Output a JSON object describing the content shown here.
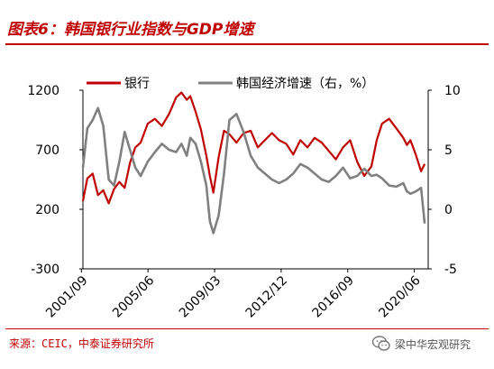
{
  "header": {
    "title": "图表6：韩国银行业指数与GDP增速"
  },
  "footer": {
    "source": "来源：CEIC，中泰证券研究所",
    "watermark": "梁中华宏观研究"
  },
  "colors": {
    "accent": "#c00000",
    "series_bank": "#c00000",
    "series_gdp": "#808080"
  },
  "chart_data": {
    "type": "line",
    "title": "",
    "legend_position": "top",
    "x_ticks": [
      "2001/09",
      "2005/06",
      "2009/03",
      "2012/12",
      "2016/09",
      "2020/06"
    ],
    "x_range": [
      "2001/09",
      "2021/03"
    ],
    "y_left": {
      "ticks": [
        "1200",
        "700",
        "200",
        "-300"
      ],
      "range": [
        -300,
        1200
      ]
    },
    "y_right": {
      "ticks": [
        "10",
        "5",
        "0",
        "-5"
      ],
      "range": [
        -5,
        10
      ]
    },
    "series": [
      {
        "name": "银行",
        "axis": "left",
        "color": "#c00000",
        "x": [
          2001.75,
          2002.0,
          2002.3,
          2002.6,
          2002.9,
          2003.2,
          2003.5,
          2003.8,
          2004.1,
          2004.4,
          2004.7,
          2005.0,
          2005.4,
          2005.8,
          2006.2,
          2006.6,
          2007.0,
          2007.3,
          2007.6,
          2007.8,
          2008.1,
          2008.4,
          2008.7,
          2008.9,
          2009.1,
          2009.4,
          2009.7,
          2010.0,
          2010.4,
          2010.8,
          2011.2,
          2011.6,
          2012.0,
          2012.4,
          2012.8,
          2013.2,
          2013.6,
          2014.0,
          2014.4,
          2014.8,
          2015.2,
          2015.6,
          2016.0,
          2016.4,
          2016.8,
          2017.2,
          2017.6,
          2018.0,
          2018.3,
          2018.6,
          2019.0,
          2019.4,
          2019.8,
          2020.0,
          2020.2,
          2020.5,
          2020.8,
          2021.0
        ],
        "values": [
          270,
          460,
          500,
          320,
          360,
          250,
          370,
          430,
          380,
          590,
          720,
          760,
          920,
          960,
          900,
          1000,
          1140,
          1180,
          1120,
          1150,
          1020,
          870,
          650,
          480,
          340,
          640,
          860,
          830,
          760,
          840,
          860,
          720,
          780,
          840,
          780,
          750,
          660,
          780,
          720,
          800,
          760,
          690,
          620,
          720,
          780,
          600,
          480,
          560,
          780,
          920,
          960,
          880,
          800,
          740,
          780,
          660,
          520,
          580
        ]
      },
      {
        "name": "韩国经济增速（右，%）",
        "axis": "right",
        "color": "#808080",
        "x": [
          2001.75,
          2002.0,
          2002.3,
          2002.6,
          2002.9,
          2003.2,
          2003.5,
          2003.8,
          2004.1,
          2004.4,
          2004.7,
          2005.0,
          2005.4,
          2005.8,
          2006.2,
          2006.6,
          2007.0,
          2007.3,
          2007.6,
          2007.8,
          2008.1,
          2008.4,
          2008.7,
          2008.9,
          2009.1,
          2009.4,
          2009.7,
          2010.0,
          2010.4,
          2010.8,
          2011.2,
          2011.6,
          2012.0,
          2012.4,
          2012.8,
          2013.2,
          2013.6,
          2014.0,
          2014.4,
          2014.8,
          2015.2,
          2015.6,
          2016.0,
          2016.4,
          2016.8,
          2017.2,
          2017.6,
          2018.0,
          2018.3,
          2018.6,
          2019.0,
          2019.4,
          2019.8,
          2020.0,
          2020.2,
          2020.5,
          2020.8,
          2021.0
        ],
        "values": [
          3.5,
          6.8,
          7.5,
          8.5,
          7.0,
          2.5,
          2.0,
          4.0,
          6.5,
          5.0,
          3.5,
          2.8,
          4.0,
          4.8,
          5.5,
          5.0,
          4.8,
          5.5,
          4.5,
          6.0,
          5.5,
          4.0,
          2.0,
          -1.0,
          -2.0,
          -0.5,
          3.0,
          7.5,
          8.0,
          6.5,
          4.5,
          3.5,
          3.0,
          2.5,
          2.2,
          2.5,
          3.0,
          3.8,
          3.5,
          3.0,
          2.5,
          2.3,
          2.8,
          3.5,
          2.6,
          2.8,
          3.4,
          2.8,
          2.9,
          2.6,
          2.0,
          1.9,
          2.2,
          1.5,
          1.3,
          1.5,
          1.8,
          -1.2
        ]
      }
    ]
  }
}
